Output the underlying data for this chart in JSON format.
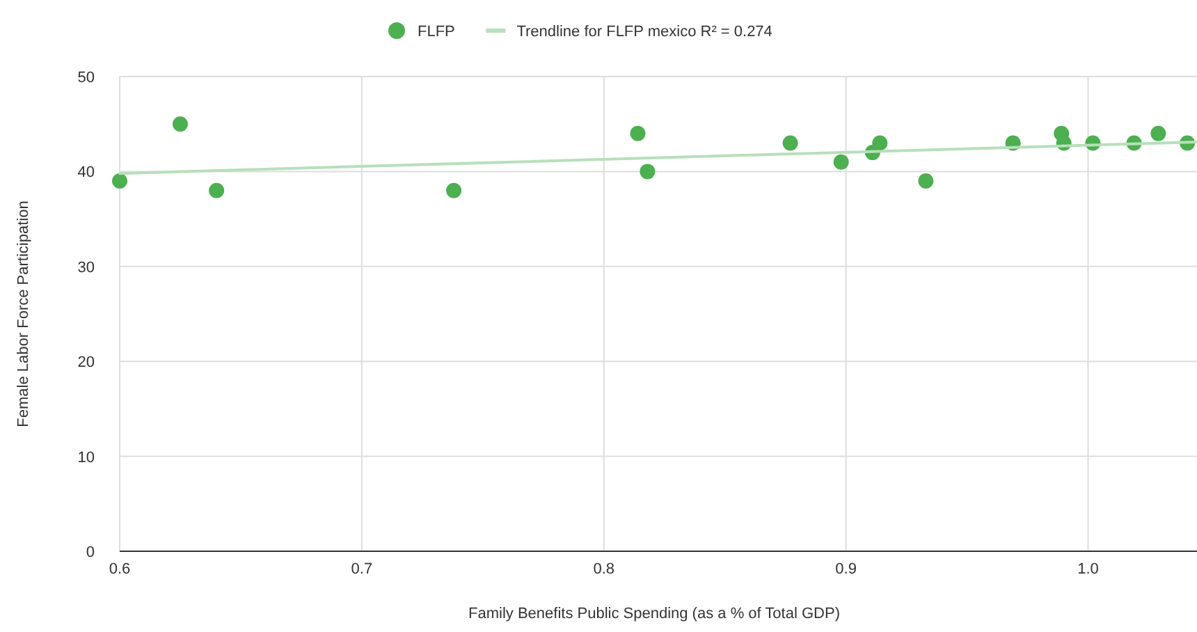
{
  "chart_data": {
    "type": "scatter",
    "xlabel": "Family Benefits Public Spending (as a % of Total GDP)",
    "ylabel": "Female Labor Force Participation",
    "xlim": [
      0.6,
      1.045
    ],
    "xticks": [
      {
        "value": 0.6,
        "label": "0.6"
      },
      {
        "value": 0.7,
        "label": "0.7"
      },
      {
        "value": 0.8,
        "label": "0.8"
      },
      {
        "value": 0.9,
        "label": "0.9"
      },
      {
        "value": 1.0,
        "label": "1.0"
      }
    ],
    "ylim": [
      0,
      50
    ],
    "yticks": [
      0,
      10,
      20,
      30,
      40,
      50
    ],
    "grid": true,
    "legend": "top",
    "series": [
      {
        "name": "FLFP",
        "marker": "circle",
        "color": "#4caf50",
        "x": [
          0.6,
          0.625,
          0.64,
          0.738,
          0.814,
          0.818,
          0.877,
          0.898,
          0.911,
          0.914,
          0.933,
          0.969,
          0.989,
          0.99,
          1.002,
          1.019,
          1.029,
          1.041
        ],
        "values": [
          39,
          45,
          38,
          38,
          44,
          40,
          43,
          41,
          42,
          43,
          39,
          43,
          44,
          43,
          43,
          43,
          44,
          43
        ]
      },
      {
        "name": "Trendline for FLFP mexico R² = 0.274",
        "type": "line",
        "color": "#b7dfb9",
        "x": [
          0.6,
          1.045
        ],
        "values": [
          39.8,
          43.1
        ]
      }
    ]
  }
}
